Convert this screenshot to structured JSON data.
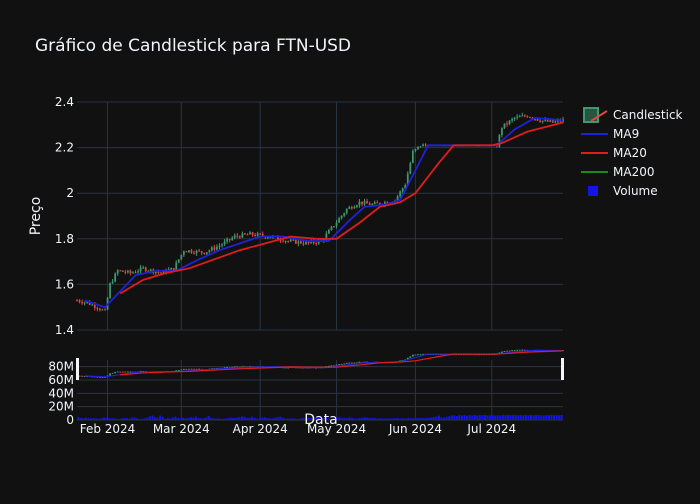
{
  "title": "Gráfico de Candlestick para FTN-USD",
  "colors": {
    "background": "#111111",
    "grid": "#283442",
    "text": "#f2f5fa",
    "candle_up": "#3d9970",
    "candle_down": "#e0463f",
    "ma9": "#1f22d9",
    "ma20": "#e01d1d",
    "ma200": "#1a8a1a",
    "volume": "#1414e6"
  },
  "chart_data": {
    "type": "candlestick",
    "ylabel": "Preço",
    "xlabel": "Data",
    "ylim": [
      1.4,
      2.4
    ],
    "yticks": [
      "1.4",
      "1.6",
      "1.8",
      "2",
      "2.2",
      "2.4"
    ],
    "xticks": [
      "Feb 2024",
      "Mar 2024",
      "Apr 2024",
      "May 2024",
      "Jun 2024",
      "Jul 2024"
    ],
    "xticks_dates": [
      "2024-02-01",
      "2024-03-01",
      "2024-04-01",
      "2024-05-01",
      "2024-06-01",
      "2024-07-01"
    ],
    "x_range": [
      "2024-01-20",
      "2024-07-29"
    ],
    "volume_ylim": [
      0,
      90000000
    ],
    "volume_yticks": [
      "0",
      "20M",
      "40M",
      "60M",
      "80M"
    ],
    "legend": {
      "position": "top-right",
      "entries": [
        "Candlestick",
        "MA9",
        "MA20",
        "MA200",
        "Volume"
      ]
    },
    "series": [
      {
        "name": "Candlestick",
        "type": "candlestick",
        "anchors": [
          [
            "2024-01-20",
            1.53
          ],
          [
            "2024-01-24",
            1.52
          ],
          [
            "2024-01-28",
            1.5
          ],
          [
            "2024-01-31",
            1.48
          ],
          [
            "2024-02-02",
            1.6
          ],
          [
            "2024-02-05",
            1.66
          ],
          [
            "2024-02-10",
            1.65
          ],
          [
            "2024-02-15",
            1.67
          ],
          [
            "2024-02-22",
            1.65
          ],
          [
            "2024-02-27",
            1.67
          ],
          [
            "2024-03-02",
            1.75
          ],
          [
            "2024-03-10",
            1.74
          ],
          [
            "2024-03-16",
            1.77
          ],
          [
            "2024-03-22",
            1.81
          ],
          [
            "2024-03-28",
            1.82
          ],
          [
            "2024-04-05",
            1.81
          ],
          [
            "2024-04-12",
            1.79
          ],
          [
            "2024-04-20",
            1.78
          ],
          [
            "2024-04-25",
            1.79
          ],
          [
            "2024-04-30",
            1.86
          ],
          [
            "2024-05-05",
            1.93
          ],
          [
            "2024-05-10",
            1.96
          ],
          [
            "2024-05-15",
            1.95
          ],
          [
            "2024-05-20",
            1.96
          ],
          [
            "2024-05-24",
            1.97
          ],
          [
            "2024-05-28",
            2.04
          ],
          [
            "2024-05-31",
            2.18
          ],
          [
            "2024-06-03",
            2.21
          ],
          [
            "2024-06-10",
            2.21
          ],
          [
            "2024-06-20",
            2.21
          ],
          [
            "2024-06-30",
            2.21
          ],
          [
            "2024-07-03",
            2.21
          ],
          [
            "2024-07-05",
            2.29
          ],
          [
            "2024-07-10",
            2.33
          ],
          [
            "2024-07-15",
            2.34
          ],
          [
            "2024-07-20",
            2.32
          ],
          [
            "2024-07-25",
            2.31
          ],
          [
            "2024-07-29",
            2.32
          ]
        ]
      },
      {
        "name": "MA9",
        "type": "line",
        "points": [
          [
            "2024-01-23",
            1.53
          ],
          [
            "2024-01-31",
            1.5
          ],
          [
            "2024-02-06",
            1.57
          ],
          [
            "2024-02-12",
            1.64
          ],
          [
            "2024-02-20",
            1.66
          ],
          [
            "2024-02-28",
            1.66
          ],
          [
            "2024-03-08",
            1.71
          ],
          [
            "2024-03-16",
            1.75
          ],
          [
            "2024-03-24",
            1.78
          ],
          [
            "2024-04-01",
            1.81
          ],
          [
            "2024-04-10",
            1.81
          ],
          [
            "2024-04-20",
            1.79
          ],
          [
            "2024-04-28",
            1.79
          ],
          [
            "2024-05-06",
            1.88
          ],
          [
            "2024-05-12",
            1.94
          ],
          [
            "2024-05-20",
            1.95
          ],
          [
            "2024-05-26",
            1.97
          ],
          [
            "2024-06-01",
            2.1
          ],
          [
            "2024-06-06",
            2.21
          ],
          [
            "2024-06-20",
            2.21
          ],
          [
            "2024-07-03",
            2.21
          ],
          [
            "2024-07-10",
            2.28
          ],
          [
            "2024-07-18",
            2.33
          ],
          [
            "2024-07-29",
            2.32
          ]
        ]
      },
      {
        "name": "MA20",
        "type": "line",
        "points": [
          [
            "2024-02-06",
            1.56
          ],
          [
            "2024-02-15",
            1.62
          ],
          [
            "2024-02-24",
            1.65
          ],
          [
            "2024-03-04",
            1.67
          ],
          [
            "2024-03-14",
            1.71
          ],
          [
            "2024-03-24",
            1.75
          ],
          [
            "2024-04-03",
            1.78
          ],
          [
            "2024-04-13",
            1.81
          ],
          [
            "2024-04-23",
            1.8
          ],
          [
            "2024-05-01",
            1.8
          ],
          [
            "2024-05-10",
            1.87
          ],
          [
            "2024-05-18",
            1.94
          ],
          [
            "2024-05-26",
            1.96
          ],
          [
            "2024-06-01",
            2.0
          ],
          [
            "2024-06-10",
            2.13
          ],
          [
            "2024-06-16",
            2.21
          ],
          [
            "2024-07-01",
            2.21
          ],
          [
            "2024-07-05",
            2.22
          ],
          [
            "2024-07-15",
            2.27
          ],
          [
            "2024-07-29",
            2.31
          ]
        ]
      },
      {
        "name": "MA200",
        "type": "line",
        "points": []
      },
      {
        "name": "Volume",
        "type": "bar",
        "axis": "volume",
        "values": [
          4500000,
          3000000,
          2800000,
          3500000,
          2600000,
          2200000,
          3000000,
          2400000,
          1800000,
          2600000,
          3800000,
          2900000,
          3200000,
          2400000,
          2500000,
          1900000,
          1500000,
          2700000,
          3000000,
          2800000,
          2100000,
          3600000,
          4000000,
          2600000,
          1600000,
          1900000,
          2500000,
          3900000,
          5500000,
          6800000,
          4200000,
          3900000,
          6600000,
          5000000,
          1800000,
          3100000,
          2300000,
          4000000,
          5300000,
          3000000,
          2400000,
          3300000,
          2700000,
          3200000,
          4100000,
          3500000,
          5200000,
          3200000,
          2500000,
          2700000,
          3600000,
          6200000,
          3200000,
          2600000,
          2200000,
          2300000,
          1700000,
          2000000,
          2300000,
          3300000,
          3600000,
          3000000,
          3400000,
          4200000,
          5100000,
          4800000,
          3100000,
          3300000,
          5000000,
          3100000,
          2300000,
          2900000,
          3800000,
          4300000,
          3000000,
          2400000,
          2600000,
          3600000,
          4500000,
          5100000,
          3500000,
          2200000,
          2000000,
          2500000,
          2300000,
          2100000,
          1700000,
          2500000,
          2900000,
          3400000,
          3600000,
          3300000,
          4100000,
          4400000,
          3000000,
          2700000,
          3200000,
          3600000,
          2300000,
          1500000,
          2800000,
          3900000,
          4700000,
          3100000,
          3600000,
          2600000,
          4100000,
          3000000,
          2400000,
          2200000,
          2900000,
          3300000,
          4200000,
          3500000,
          2900000,
          3200000,
          2700000,
          2500000,
          2600000,
          2200000,
          2100000,
          2400000,
          2600000,
          2300000,
          2900000,
          3100000,
          2200000,
          2800000,
          2400000,
          2700000,
          2900000,
          2500000,
          3000000,
          3300000,
          3100000,
          2900000,
          3200000,
          3400000,
          3800000,
          4500000,
          5300000,
          6600000,
          4000000,
          3500000,
          4800000,
          5600000,
          6900000,
          7200000,
          5900000,
          7600000,
          6800000,
          7500000,
          6600000,
          7300000,
          6800000,
          7500000,
          6900000,
          7600000,
          7400000,
          7700000,
          7000000,
          7300000,
          7800000,
          7000000,
          7200000,
          6900000,
          7400000,
          7300000,
          7600000,
          7500000,
          7400000,
          7600000,
          7300000,
          7500000,
          7200000,
          7700000,
          7300000,
          7500000,
          7100000,
          7600000,
          7400000,
          7200000,
          7000000,
          7500000,
          7300000,
          7700000,
          7400000,
          7300000,
          7200000,
          7600000
        ]
      }
    ]
  }
}
